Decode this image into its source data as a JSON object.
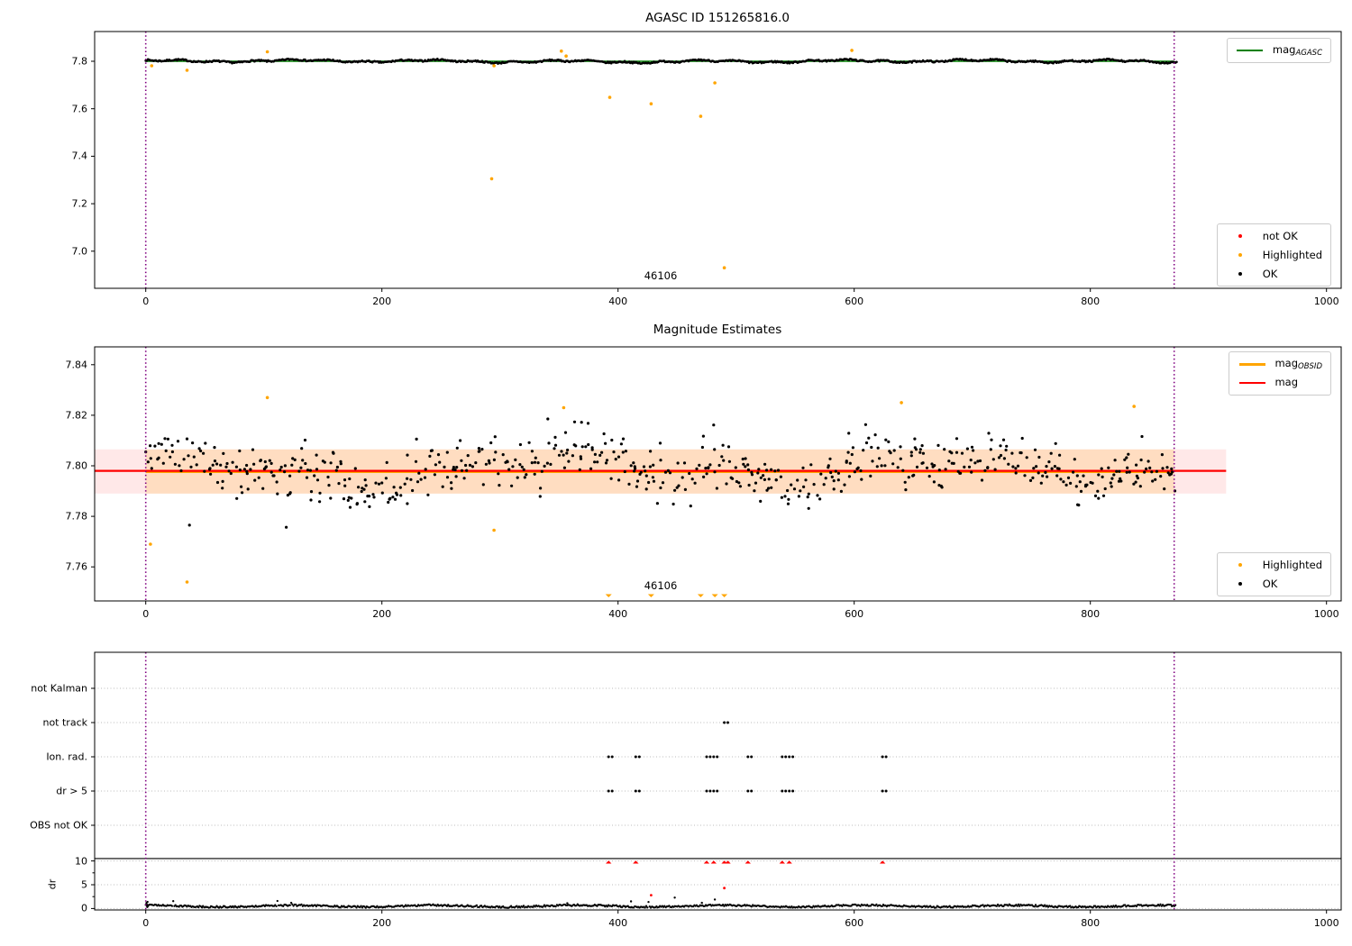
{
  "colors": {
    "ok": "#000000",
    "not_ok": "#ff0000",
    "highlighted": "#ffa500",
    "mag_line": "#ff0000",
    "obsid_line": "#ffa500",
    "agasc_line": "#008000",
    "vline": "#800080",
    "band_red": "rgba(255,0,0,0.09)",
    "band_orange": "rgba(255,165,0,0.17)",
    "grid": "#bbbbbb",
    "spine": "#000000"
  },
  "chart_data": [
    {
      "type": "scatter",
      "title": "AGASC ID 151265816.0",
      "xlim": [
        -43.5,
        1012.5
      ],
      "ylim": [
        6.844,
        7.925
      ],
      "xticks": [
        0,
        200,
        400,
        600,
        800,
        1000
      ],
      "yticks": [
        7.8,
        7.6,
        7.4,
        7.2,
        7.0
      ],
      "vlines": [
        0,
        871
      ],
      "agasc_mag_line": {
        "y": 7.8,
        "x0": 0,
        "x1": 871
      },
      "ok_band": {
        "count": 920,
        "x_step": 0.95,
        "mean": 7.8,
        "noise": 0.0065,
        "seed": 7
      },
      "highlighted_points": [
        [
          5,
          7.781
        ],
        [
          35,
          7.762
        ],
        [
          103,
          7.84
        ],
        [
          293,
          7.305
        ],
        [
          295,
          7.781
        ],
        [
          352,
          7.843
        ],
        [
          356,
          7.822
        ],
        [
          393,
          7.648
        ],
        [
          428,
          7.621
        ],
        [
          470,
          7.568
        ],
        [
          482,
          7.709
        ],
        [
          490,
          6.93
        ],
        [
          598,
          7.846
        ]
      ],
      "annotation": {
        "text": "46106",
        "x": 436,
        "y": 6.893
      },
      "legends": [
        {
          "pos": "tr",
          "items": [
            {
              "marker": "line",
              "color": "#008000",
              "text": "mag",
              "sub": "AGASC"
            }
          ]
        },
        {
          "pos": "br",
          "items": [
            {
              "marker": "dot",
              "color": "#ff0000",
              "text": "not OK"
            },
            {
              "marker": "dot",
              "color": "#ffa500",
              "text": "Highlighted"
            },
            {
              "marker": "dot",
              "color": "#000000",
              "text": "OK"
            }
          ]
        }
      ]
    },
    {
      "type": "scatter",
      "title": "Magnitude Estimates",
      "xlim": [
        -43.5,
        1012.5
      ],
      "ylim": [
        7.7465,
        7.8471
      ],
      "xticks": [
        0,
        200,
        400,
        600,
        800,
        1000
      ],
      "yticks": [
        7.84,
        7.82,
        7.8,
        7.78,
        7.76
      ],
      "vlines": [
        0,
        871
      ],
      "mag_line": {
        "y": 7.798,
        "x0_px_extends_left": true,
        "x1": 915
      },
      "obsid_line": {
        "y": 7.7975,
        "x0": 0,
        "x1": 871
      },
      "band_red": {
        "y0": 7.789,
        "y1": 7.8065,
        "x1": 915
      },
      "band_orange": {
        "y0": 7.789,
        "y1": 7.8065,
        "x0": 0,
        "x1": 871
      },
      "ok_scatter": {
        "count": 460,
        "x_step": 1.9,
        "mean": 7.798,
        "noise": 0.0085,
        "seed": 11,
        "clamp": [
          7.7745,
          7.8285
        ]
      },
      "ok_outliers": [
        [
          37,
          7.7765
        ],
        [
          119,
          7.7757
        ]
      ],
      "highlighted_points": [
        [
          4,
          7.769
        ],
        [
          35,
          7.754
        ],
        [
          103,
          7.827
        ],
        [
          295,
          7.7745
        ],
        [
          354,
          7.823
        ],
        [
          640,
          7.825
        ],
        [
          837,
          7.8235
        ]
      ],
      "clipped_low_triangles_x": [
        392,
        428,
        470,
        482,
        490
      ],
      "annotation": {
        "text": "46106",
        "x": 436,
        "y": 7.7526
      },
      "legends": [
        {
          "pos": "tr",
          "items": [
            {
              "marker": "line-thick",
              "color": "#ffa500",
              "text": "mag",
              "sub": "OBSID"
            },
            {
              "marker": "line",
              "color": "#ff0000",
              "text": "mag",
              "sub": ""
            }
          ]
        },
        {
          "pos": "br",
          "items": [
            {
              "marker": "dot",
              "color": "#ffa500",
              "text": "Highlighted"
            },
            {
              "marker": "dot",
              "color": "#000000",
              "text": "OK"
            }
          ]
        }
      ]
    },
    {
      "type": "scatter-flags",
      "title": "",
      "xlim": [
        -43.5,
        1012.5
      ],
      "xticks": [
        0,
        200,
        400,
        600,
        800,
        1000
      ],
      "vlines": [
        0,
        871
      ],
      "categories": [
        "not Kalman",
        "not track",
        "Ion. rad.",
        "dr > 5",
        "OBS not OK"
      ],
      "dr_ticks": [
        10,
        5,
        0
      ],
      "ylabel": "dr",
      "flag_x": {
        "not_kalman": [],
        "not_track": [
          490
        ],
        "ion_rad": [
          392,
          415,
          475,
          481,
          510,
          539,
          545,
          624
        ],
        "dr_gt_5": [
          392,
          415,
          475,
          481,
          510,
          539,
          545,
          624
        ],
        "obs_not_ok": []
      },
      "twin_offset": 3,
      "red_clipped_x": [
        392,
        415,
        475,
        481,
        490,
        493,
        510,
        539,
        545,
        624
      ],
      "red_points": [
        [
          428,
          2.8
        ],
        [
          490,
          4.3
        ]
      ],
      "black_outliers": [
        [
          357,
          1.1
        ],
        [
          411,
          1.5
        ],
        [
          448,
          2.3
        ],
        [
          471,
          1.2
        ],
        [
          482,
          1.9
        ]
      ],
      "separator_dr": 10.5,
      "dr_band": {
        "count": 900,
        "x_step": 0.97,
        "mean": 0.5,
        "seed": 5
      }
    }
  ]
}
